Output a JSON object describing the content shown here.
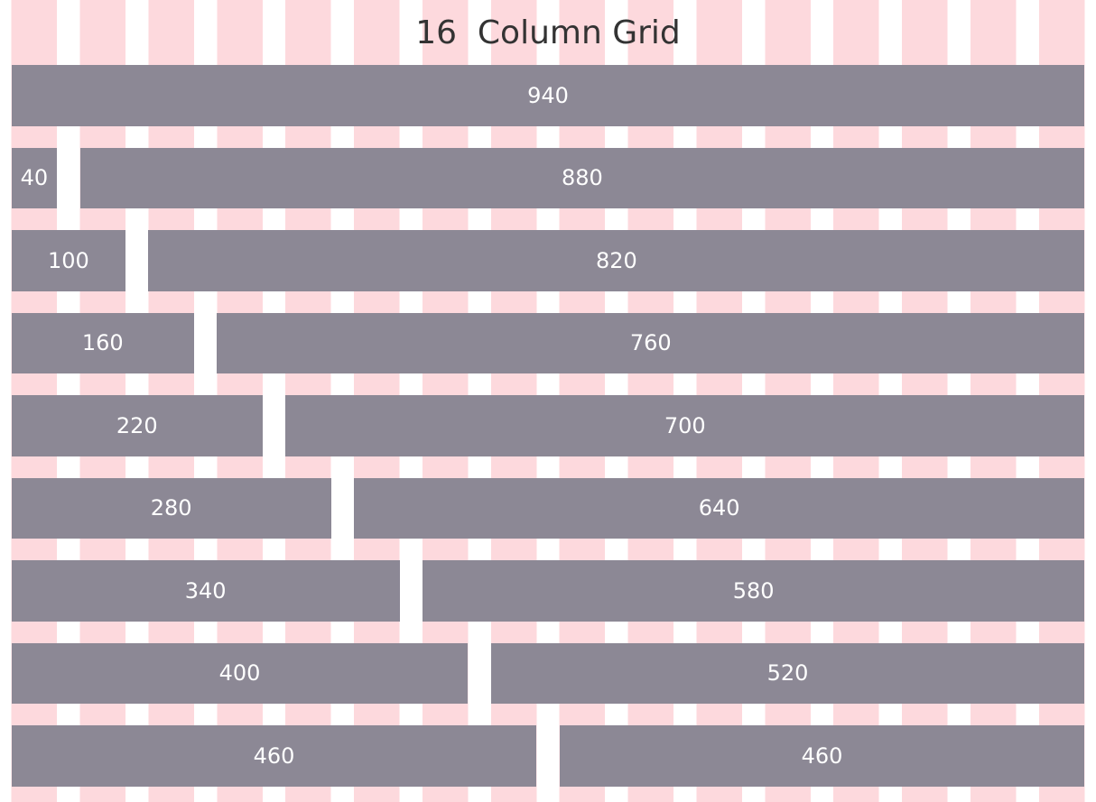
{
  "title": "16  Column Grid",
  "grid": {
    "total_columns": 16,
    "rows": [
      {
        "cells": [
          {
            "label": "940",
            "cols": 16
          }
        ]
      },
      {
        "cells": [
          {
            "label": "40",
            "cols": 1
          },
          {
            "label": "880",
            "cols": 15
          }
        ]
      },
      {
        "cells": [
          {
            "label": "100",
            "cols": 2
          },
          {
            "label": "820",
            "cols": 14
          }
        ]
      },
      {
        "cells": [
          {
            "label": "160",
            "cols": 3
          },
          {
            "label": "760",
            "cols": 13
          }
        ]
      },
      {
        "cells": [
          {
            "label": "220",
            "cols": 4
          },
          {
            "label": "700",
            "cols": 12
          }
        ]
      },
      {
        "cells": [
          {
            "label": "280",
            "cols": 5
          },
          {
            "label": "640",
            "cols": 11
          }
        ]
      },
      {
        "cells": [
          {
            "label": "340",
            "cols": 6
          },
          {
            "label": "580",
            "cols": 10
          }
        ]
      },
      {
        "cells": [
          {
            "label": "400",
            "cols": 7
          },
          {
            "label": "520",
            "cols": 9
          }
        ]
      },
      {
        "cells": [
          {
            "label": "460",
            "cols": 8
          },
          {
            "label": "460",
            "cols": 8
          }
        ]
      }
    ]
  },
  "colors": {
    "background": "#ffffff",
    "column_stripe": "#fdd9dd",
    "bar": "#8c8895",
    "bar_text": "#ffffff",
    "title_text": "#333333"
  }
}
